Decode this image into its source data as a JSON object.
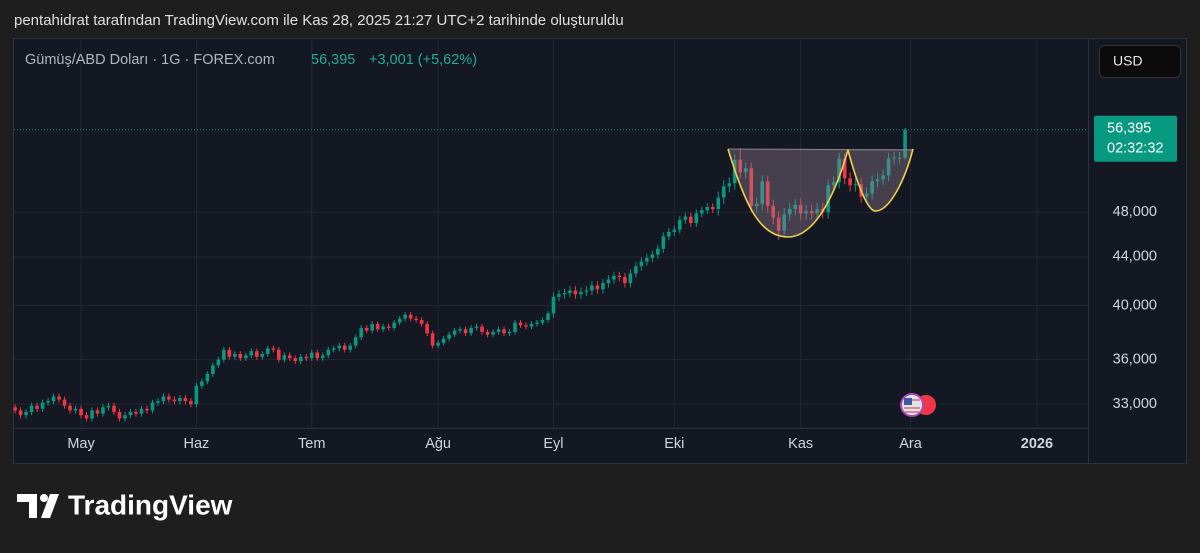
{
  "caption": "pentahidrat tarafından TradingView.com ile Kas 28, 2025 21:27 UTC+2 tarihinde oluşturuldu",
  "brand": "TradingView",
  "chart_data": {
    "type": "candlestick",
    "symbol": "Gümüş/ABD Doları · 1G · FOREX.com",
    "change": "+3,001 (+5,62%)",
    "currency": "USD",
    "countdown": "02:32:32",
    "last_price": {
      "value": 56.395,
      "label": "56,395"
    },
    "log_scale": true,
    "grid": true,
    "up_color": "#089981",
    "down_color": "#f23645",
    "ylim": [
      31.5,
      67.2
    ],
    "yticks": [
      {
        "value": 33,
        "label": "33,000"
      },
      {
        "value": 36,
        "label": "36,000"
      },
      {
        "value": 40,
        "label": "40,000"
      },
      {
        "value": 44,
        "label": "44,000"
      },
      {
        "value": 48,
        "label": "48,000"
      }
    ],
    "xlim": [
      -0.2,
      195.3
    ],
    "xticks": [
      {
        "value": 12,
        "label": "May"
      },
      {
        "value": 33,
        "label": "Haz"
      },
      {
        "value": 54,
        "label": "Tem"
      },
      {
        "value": 77,
        "label": "Ağu"
      },
      {
        "value": 98,
        "label": "Eyl"
      },
      {
        "value": 120,
        "label": "Eki"
      },
      {
        "value": 143,
        "label": "Kas"
      },
      {
        "value": 163,
        "label": "Ara"
      },
      {
        "value": 186,
        "label": "2026"
      }
    ],
    "open": [
      32.8,
      32.6,
      32.3,
      32.5,
      32.9,
      32.7,
      33.1,
      33.2,
      33.5,
      33.3,
      32.9,
      32.6,
      32.7,
      32.3,
      32.1,
      32.6,
      32.4,
      32.8,
      32.9,
      32.5,
      32.1,
      32.3,
      32.5,
      32.4,
      32.7,
      32.6,
      33.1,
      33.2,
      33.5,
      33.3,
      33.2,
      33.4,
      33.2,
      33.0,
      34.2,
      34.5,
      35.0,
      35.6,
      36.0,
      36.7,
      36.2,
      36.4,
      36.1,
      36.3,
      36.6,
      36.2,
      36.4,
      36.8,
      36.7,
      36.0,
      36.3,
      36.1,
      35.9,
      36.2,
      36.1,
      36.5,
      36.1,
      36.3,
      36.7,
      36.8,
      37.0,
      36.7,
      37.0,
      37.6,
      38.3,
      38.1,
      38.6,
      38.2,
      38.4,
      38.3,
      38.7,
      39.0,
      39.3,
      39.0,
      38.9,
      38.6,
      37.9,
      37.0,
      37.2,
      37.5,
      37.8,
      38.1,
      38.2,
      37.9,
      38.3,
      38.4,
      38.0,
      37.8,
      38.0,
      38.2,
      37.9,
      38.0,
      38.7,
      38.5,
      38.4,
      38.6,
      38.7,
      38.9,
      39.4,
      40.7,
      40.9,
      41.0,
      41.2,
      40.9,
      41.1,
      41.2,
      41.6,
      41.3,
      41.8,
      42.1,
      42.4,
      42.3,
      41.8,
      42.6,
      43.2,
      43.6,
      43.9,
      44.2,
      44.7,
      45.8,
      46.2,
      46.4,
      47.3,
      47.6,
      47.0,
      47.9,
      48.2,
      48.5,
      48.3,
      49.4,
      50.5,
      50.8,
      53.2,
      51.9,
      52.3,
      48.6,
      48.8,
      51.0,
      48.6,
      47.5,
      46.3,
      47.8,
      48.3,
      48.7,
      47.9,
      48.1,
      47.9,
      48.3,
      48.0,
      50.6,
      50.9,
      53.3,
      51.3,
      50.6,
      50.7,
      49.5,
      49.8,
      51.0,
      51.2,
      51.6,
      53.3,
      53.4,
      53.4
    ],
    "high": [
      33.0,
      32.8,
      32.7,
      33.1,
      33.1,
      33.3,
      33.4,
      33.7,
      33.7,
      33.5,
      33.1,
      32.9,
      32.9,
      32.5,
      32.8,
      32.8,
      33.0,
      33.1,
      33.1,
      32.7,
      32.5,
      32.7,
      32.7,
      32.9,
      32.9,
      33.3,
      33.4,
      33.7,
      33.7,
      33.5,
      33.6,
      33.6,
      33.4,
      34.4,
      34.7,
      35.2,
      35.8,
      36.2,
      36.9,
      36.9,
      36.6,
      36.6,
      36.5,
      36.8,
      36.8,
      36.6,
      37.0,
      37.0,
      36.9,
      36.5,
      36.5,
      36.3,
      36.4,
      36.4,
      36.7,
      36.7,
      36.5,
      36.9,
      37.0,
      37.2,
      37.2,
      37.2,
      37.8,
      38.5,
      38.5,
      38.8,
      38.8,
      38.6,
      38.6,
      38.9,
      39.2,
      39.5,
      39.5,
      39.2,
      39.1,
      38.8,
      38.1,
      37.4,
      37.7,
      38.0,
      38.3,
      38.4,
      38.4,
      38.5,
      38.6,
      38.6,
      38.2,
      38.2,
      38.4,
      38.4,
      38.2,
      38.9,
      38.9,
      38.7,
      38.8,
      38.9,
      39.1,
      39.6,
      41.05,
      41.25,
      41.35,
      41.55,
      41.55,
      41.45,
      41.55,
      41.95,
      41.95,
      42.15,
      42.45,
      42.75,
      42.75,
      42.65,
      42.95,
      43.55,
      43.95,
      44.25,
      44.55,
      45.05,
      46.15,
      46.55,
      46.75,
      47.65,
      47.95,
      47.95,
      48.25,
      48.55,
      48.85,
      48.85,
      50.0,
      51.1,
      51.4,
      53.8,
      54.4,
      52.9,
      52.9,
      49.4,
      51.6,
      51.6,
      49.2,
      48.1,
      48.4,
      48.9,
      49.3,
      49.3,
      48.7,
      48.7,
      48.9,
      48.9,
      51.2,
      51.5,
      53.9,
      53.9,
      51.9,
      51.3,
      51.3,
      50.4,
      51.6,
      51.8,
      52.2,
      53.9,
      54.0,
      54.0,
      56.6
    ],
    "low": [
      32.4,
      32.1,
      32.1,
      32.3,
      32.5,
      32.5,
      32.9,
      33.0,
      33.1,
      32.7,
      32.4,
      32.4,
      32.1,
      31.9,
      31.9,
      32.2,
      32.2,
      32.6,
      32.3,
      31.9,
      31.9,
      32.1,
      32.2,
      32.2,
      32.4,
      32.4,
      32.9,
      33.0,
      33.1,
      33.0,
      33.0,
      33.0,
      32.8,
      32.8,
      34.0,
      34.3,
      34.8,
      35.4,
      35.8,
      36.0,
      36.0,
      35.9,
      35.9,
      36.1,
      36.0,
      36.0,
      36.2,
      36.5,
      35.8,
      35.8,
      35.9,
      35.7,
      35.7,
      35.9,
      35.9,
      35.9,
      35.9,
      36.1,
      36.5,
      36.6,
      36.5,
      36.5,
      36.8,
      37.4,
      37.9,
      37.9,
      38.0,
      38.0,
      38.1,
      38.1,
      38.5,
      38.8,
      38.8,
      38.7,
      38.4,
      37.7,
      36.8,
      36.8,
      37.0,
      37.3,
      37.6,
      37.9,
      37.7,
      37.7,
      38.1,
      37.8,
      37.6,
      37.6,
      37.8,
      37.7,
      37.7,
      37.8,
      38.3,
      38.2,
      38.2,
      38.4,
      38.5,
      38.7,
      39.05,
      40.35,
      40.55,
      40.65,
      40.55,
      40.55,
      40.75,
      40.85,
      40.95,
      40.95,
      41.45,
      41.75,
      41.95,
      41.45,
      41.45,
      42.25,
      42.85,
      43.25,
      43.55,
      43.85,
      44.35,
      45.45,
      45.85,
      46.05,
      46.95,
      46.65,
      46.65,
      47.55,
      47.85,
      47.95,
      47.7,
      48.8,
      49.9,
      50.2,
      51.3,
      51.3,
      48.0,
      48.0,
      48.2,
      48.0,
      46.9,
      45.5,
      45.7,
      47.2,
      47.7,
      47.3,
      47.3,
      47.3,
      47.3,
      47.4,
      47.4,
      50.0,
      50.3,
      50.7,
      50.0,
      50.0,
      48.9,
      48.9,
      49.2,
      50.4,
      50.6,
      51.0,
      52.7,
      52.8,
      53.2
    ],
    "close": [
      32.6,
      32.3,
      32.5,
      32.9,
      32.7,
      33.1,
      33.2,
      33.5,
      33.3,
      32.9,
      32.6,
      32.7,
      32.3,
      32.1,
      32.6,
      32.4,
      32.8,
      32.9,
      32.5,
      32.1,
      32.3,
      32.5,
      32.4,
      32.7,
      32.6,
      33.1,
      33.2,
      33.5,
      33.3,
      33.2,
      33.4,
      33.2,
      33.0,
      34.2,
      34.5,
      35.0,
      35.6,
      36.0,
      36.7,
      36.2,
      36.4,
      36.1,
      36.3,
      36.6,
      36.2,
      36.4,
      36.8,
      36.7,
      36.0,
      36.3,
      36.1,
      35.9,
      36.2,
      36.1,
      36.5,
      36.1,
      36.3,
      36.7,
      36.8,
      37.0,
      36.7,
      37.0,
      37.6,
      38.3,
      38.1,
      38.6,
      38.2,
      38.4,
      38.3,
      38.7,
      39.0,
      39.3,
      39.0,
      38.9,
      38.6,
      37.9,
      37.0,
      37.2,
      37.5,
      37.8,
      38.1,
      38.2,
      37.9,
      38.3,
      38.4,
      38.0,
      37.8,
      38.0,
      38.2,
      37.9,
      38.0,
      38.7,
      38.5,
      38.4,
      38.6,
      38.7,
      38.9,
      39.4,
      40.7,
      40.9,
      41.0,
      41.2,
      40.9,
      41.1,
      41.2,
      41.6,
      41.3,
      41.8,
      42.1,
      42.4,
      42.3,
      41.8,
      42.6,
      43.2,
      43.6,
      43.9,
      44.2,
      44.7,
      45.8,
      46.2,
      46.4,
      47.3,
      47.6,
      47.0,
      47.9,
      48.2,
      48.5,
      48.3,
      49.4,
      50.5,
      50.8,
      53.2,
      51.9,
      52.3,
      48.6,
      48.8,
      51.0,
      48.6,
      47.5,
      46.3,
      47.8,
      48.3,
      48.7,
      47.9,
      48.1,
      47.9,
      48.3,
      48.0,
      50.6,
      50.9,
      53.3,
      51.3,
      50.6,
      50.7,
      49.5,
      49.8,
      51.0,
      51.2,
      51.6,
      53.3,
      53.4,
      53.4,
      56.395
    ]
  }
}
